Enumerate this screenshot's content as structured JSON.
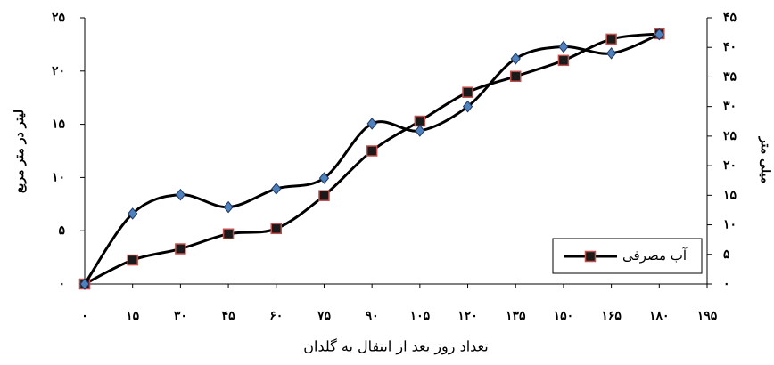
{
  "chart_data": {
    "type": "line",
    "smooth": true,
    "x_label": "تعداد روز بعد از انتقال به گلدان",
    "y_label": "لیتر در متر مربع",
    "y2_label": "میلی متر",
    "x": [
      0,
      15,
      30,
      45,
      60,
      75,
      90,
      105,
      120,
      135,
      150,
      165,
      180
    ],
    "xlim": [
      0,
      195
    ],
    "xticks": [
      {
        "value": 0,
        "label": "۰"
      },
      {
        "value": 15,
        "label": "۱۵"
      },
      {
        "value": 30,
        "label": "۳۰"
      },
      {
        "value": 45,
        "label": "۴۵"
      },
      {
        "value": 60,
        "label": "۶۰"
      },
      {
        "value": 75,
        "label": "۷۵"
      },
      {
        "value": 90,
        "label": "۹۰"
      },
      {
        "value": 105,
        "label": "۱۰۵"
      },
      {
        "value": 120,
        "label": "۱۲۰"
      },
      {
        "value": 135,
        "label": "۱۳۵"
      },
      {
        "value": 150,
        "label": "۱۵۰"
      },
      {
        "value": 165,
        "label": "۱۶۵"
      },
      {
        "value": 180,
        "label": "۱۸۰"
      },
      {
        "value": 195,
        "label": "۱۹۵"
      }
    ],
    "ylim": [
      0,
      25
    ],
    "yticks": [
      {
        "value": 0,
        "label": "۰"
      },
      {
        "value": 5,
        "label": "۵"
      },
      {
        "value": 10,
        "label": "۱۰"
      },
      {
        "value": 15,
        "label": "۱۵"
      },
      {
        "value": 20,
        "label": "۲۰"
      },
      {
        "value": 25,
        "label": "۲۵"
      }
    ],
    "y2lim": [
      0,
      45
    ],
    "y2ticks": [
      {
        "value": 0,
        "label": "۰"
      },
      {
        "value": 5,
        "label": "۵"
      },
      {
        "value": 10,
        "label": "۱۰"
      },
      {
        "value": 15,
        "label": "۱۵"
      },
      {
        "value": 20,
        "label": "۲۰"
      },
      {
        "value": 25,
        "label": "۲۵"
      },
      {
        "value": 30,
        "label": "۳۰"
      },
      {
        "value": 35,
        "label": "۳۵"
      },
      {
        "value": 40,
        "label": "۴۰"
      },
      {
        "value": 45,
        "label": "۴۵"
      }
    ],
    "legend": "lower right",
    "series": [
      {
        "name": "آب مصرفی",
        "color": "#000000",
        "marker": "square",
        "marker_color": "#1a1a1a",
        "marker_edge": "#c0504d",
        "values": [
          0,
          2.25,
          3.3,
          4.7,
          5.2,
          8.3,
          12.5,
          15.3,
          18,
          19.5,
          21,
          23,
          23.5
        ]
      },
      {
        "axis": "y2",
        "color": "#000000",
        "marker": "diamond",
        "marker_color": "#4f81bd",
        "marker_edge": "#1f3864",
        "values": [
          0,
          11.9,
          15.1,
          13,
          16.1,
          17.9,
          27.1,
          25.9,
          30,
          38.1,
          40.1,
          39,
          42.2
        ]
      }
    ]
  }
}
